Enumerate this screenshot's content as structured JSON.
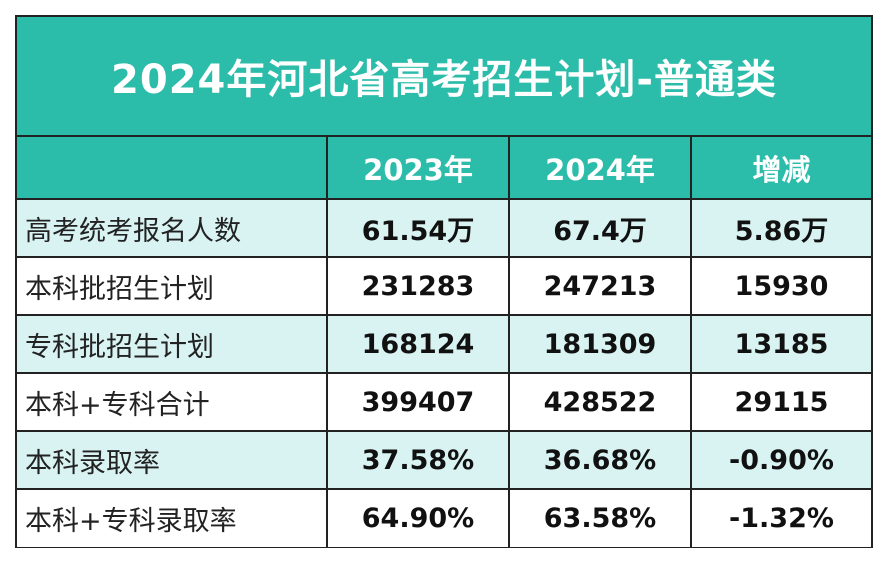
{
  "title": "2024年河北省高考招生计划-普通类",
  "colors": {
    "header_bg": "#2bbcaa",
    "band_bg": "#d9f3f3",
    "border": "#222222"
  },
  "table": {
    "headers": [
      "",
      "2023年",
      "2024年",
      "增减"
    ],
    "rows": [
      {
        "label": "高考统考报名人数",
        "y2023": "61.54万",
        "y2024": "67.4万",
        "change": "5.86万"
      },
      {
        "label": "本科批招生计划",
        "y2023": "231283",
        "y2024": "247213",
        "change": "15930"
      },
      {
        "label": "专科批招生计划",
        "y2023": "168124",
        "y2024": "181309",
        "change": "13185"
      },
      {
        "label": "本科+专科合计",
        "y2023": "399407",
        "y2024": "428522",
        "change": "29115"
      },
      {
        "label": "本科录取率",
        "y2023": "37.58%",
        "y2024": "36.68%",
        "change": "-0.90%"
      },
      {
        "label": "本科+专科录取率",
        "y2023": "64.90%",
        "y2024": "63.58%",
        "change": "-1.32%"
      }
    ]
  }
}
